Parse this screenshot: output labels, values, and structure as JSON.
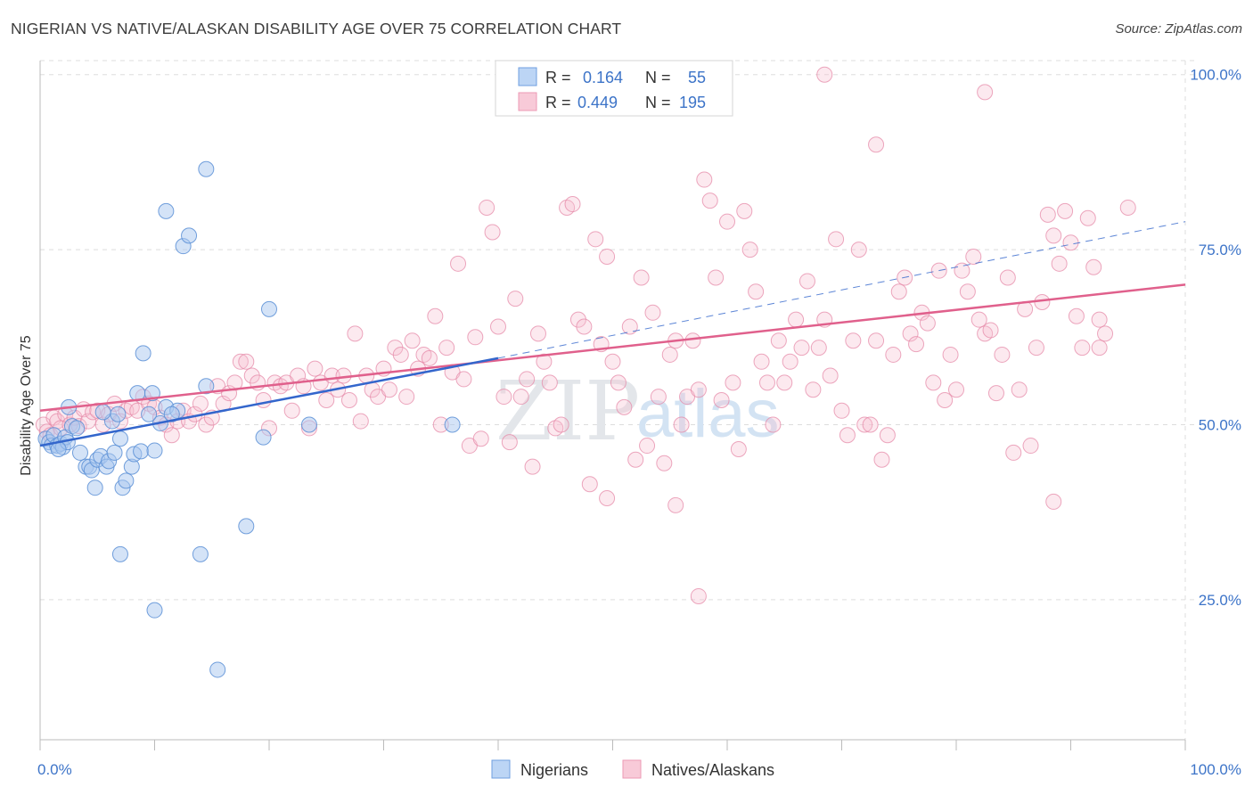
{
  "header": {
    "title": "NIGERIAN VS NATIVE/ALASKAN DISABILITY AGE OVER 75 CORRELATION CHART",
    "source": "Source: ZipAtlas.com"
  },
  "watermark": {
    "zip": "ZIP",
    "atlas": "atlas"
  },
  "colors": {
    "blue_fill": "#aac8f0",
    "blue_stroke": "#5b8fd6",
    "blue_line": "#3366cc",
    "pink_fill": "#f7c1d2",
    "pink_stroke": "#e68aa8",
    "pink_line": "#e0608c",
    "tick_text": "#3d74c8",
    "grid": "#dddddd"
  },
  "legend": {
    "rows": [
      {
        "r_label": "R =",
        "r_value": "0.164",
        "n_label": "N =",
        "n_value": "55"
      },
      {
        "r_label": "R =",
        "r_value": "0.449",
        "n_label": "N =",
        "n_value": "195"
      }
    ]
  },
  "bottom_legend": {
    "series1": "Nigerians",
    "series2": "Natives/Alaskans"
  },
  "chart_data": {
    "type": "scatter",
    "title": "NIGERIAN VS NATIVE/ALASKAN DISABILITY AGE OVER 75 CORRELATION CHART",
    "xlabel": "",
    "ylabel": "Disability Age Over 75",
    "xlim": [
      0,
      100
    ],
    "ylim": [
      5,
      102
    ],
    "x_tick_labels": [
      "0.0%",
      "100.0%"
    ],
    "y_ticks": [
      25,
      50,
      75,
      100
    ],
    "y_tick_labels": [
      "25.0%",
      "50.0%",
      "75.0%",
      "100.0%"
    ],
    "grid": true,
    "legend_position": "top-center",
    "series": [
      {
        "name": "Nigerians",
        "r": 0.164,
        "n": 55,
        "trend": {
          "x0": 0,
          "y0": 47.0,
          "x1": 40,
          "y1": 59.5,
          "dashed_to_x": 100,
          "dashed_to_y": 79.0
        },
        "points": [
          [
            0.5,
            48
          ],
          [
            0.8,
            47.5
          ],
          [
            1.0,
            47
          ],
          [
            1.2,
            48.5
          ],
          [
            1.5,
            47
          ],
          [
            1.8,
            47.3
          ],
          [
            2.0,
            46.8
          ],
          [
            2.2,
            48.2
          ],
          [
            2.4,
            47.5
          ],
          [
            1.6,
            46.5
          ],
          [
            2.8,
            49.8
          ],
          [
            2.5,
            52.5
          ],
          [
            3.2,
            49.5
          ],
          [
            3.5,
            46
          ],
          [
            4.0,
            44
          ],
          [
            4.3,
            44
          ],
          [
            4.5,
            43.5
          ],
          [
            4.8,
            41
          ],
          [
            5.0,
            45
          ],
          [
            5.3,
            45.5
          ],
          [
            5.8,
            44
          ],
          [
            6.0,
            44.8
          ],
          [
            6.3,
            50.5
          ],
          [
            6.5,
            46
          ],
          [
            7.0,
            48
          ],
          [
            7.2,
            41
          ],
          [
            7.5,
            42
          ],
          [
            8.0,
            44
          ],
          [
            8.2,
            45.8
          ],
          [
            8.5,
            54.5
          ],
          [
            8.8,
            46.2
          ],
          [
            6.8,
            51.5
          ],
          [
            5.5,
            51.8
          ],
          [
            10.5,
            50.2
          ],
          [
            11.0,
            52.5
          ],
          [
            9.5,
            51.5
          ],
          [
            9.0,
            60.2
          ],
          [
            10.0,
            46.3
          ],
          [
            12.0,
            52
          ],
          [
            11.5,
            51.5
          ],
          [
            12.5,
            75.5
          ],
          [
            13.0,
            77
          ],
          [
            14.5,
            55.5
          ],
          [
            11.0,
            80.5
          ],
          [
            19.5,
            48.2
          ],
          [
            20.0,
            66.5
          ],
          [
            23.5,
            50
          ],
          [
            18.0,
            35.5
          ],
          [
            14.0,
            31.5
          ],
          [
            7.0,
            31.5
          ],
          [
            10.0,
            23.5
          ],
          [
            15.5,
            15
          ],
          [
            36.0,
            50
          ],
          [
            14.5,
            86.5
          ],
          [
            9.8,
            54.5
          ]
        ]
      },
      {
        "name": "Natives/Alaskans",
        "r": 0.449,
        "n": 195,
        "trend": {
          "x0": 0,
          "y0": 52.0,
          "x1": 100,
          "y1": 70.0
        },
        "points": [
          [
            0.3,
            50
          ],
          [
            0.6,
            49
          ],
          [
            0.9,
            48.5
          ],
          [
            1.2,
            51
          ],
          [
            1.5,
            50.5
          ],
          [
            1.8,
            49.5
          ],
          [
            2.2,
            51.5
          ],
          [
            2.6,
            50
          ],
          [
            3.0,
            51
          ],
          [
            3.4,
            49.8
          ],
          [
            3.8,
            52.2
          ],
          [
            4.2,
            50.5
          ],
          [
            4.6,
            51.8
          ],
          [
            5.0,
            52
          ],
          [
            5.5,
            50
          ],
          [
            6.0,
            51.5
          ],
          [
            6.5,
            53
          ],
          [
            7.0,
            50.5
          ],
          [
            7.5,
            52
          ],
          [
            8.0,
            52.5
          ],
          [
            8.5,
            52
          ],
          [
            9.0,
            54
          ],
          [
            9.5,
            53
          ],
          [
            10.0,
            52.5
          ],
          [
            10.5,
            51
          ],
          [
            11.0,
            50
          ],
          [
            11.5,
            48.5
          ],
          [
            12.0,
            50.5
          ],
          [
            12.5,
            52
          ],
          [
            13.0,
            50.5
          ],
          [
            13.5,
            51.5
          ],
          [
            14.0,
            53
          ],
          [
            14.5,
            50
          ],
          [
            15.0,
            51
          ],
          [
            15.5,
            55.5
          ],
          [
            16.0,
            53
          ],
          [
            16.5,
            54.5
          ],
          [
            17.0,
            56
          ],
          [
            17.5,
            59
          ],
          [
            18.0,
            59
          ],
          [
            18.5,
            57
          ],
          [
            19.0,
            56
          ],
          [
            19.5,
            53.5
          ],
          [
            20.0,
            49.5
          ],
          [
            20.5,
            56
          ],
          [
            21.0,
            55.5
          ],
          [
            21.5,
            56
          ],
          [
            22.0,
            52
          ],
          [
            22.5,
            57
          ],
          [
            23.0,
            55.5
          ],
          [
            23.5,
            49.5
          ],
          [
            24.0,
            58
          ],
          [
            24.5,
            56
          ],
          [
            25.0,
            53.5
          ],
          [
            25.5,
            57
          ],
          [
            26.0,
            55
          ],
          [
            26.5,
            57
          ],
          [
            27.0,
            53.5
          ],
          [
            27.5,
            63
          ],
          [
            28.0,
            50.5
          ],
          [
            28.5,
            57
          ],
          [
            29.0,
            55
          ],
          [
            29.5,
            54
          ],
          [
            30.0,
            58
          ],
          [
            30.5,
            55
          ],
          [
            31.0,
            61
          ],
          [
            31.5,
            60
          ],
          [
            32.0,
            54
          ],
          [
            32.5,
            62
          ],
          [
            33.0,
            58
          ],
          [
            33.5,
            60
          ],
          [
            34.0,
            59.5
          ],
          [
            34.5,
            65.5
          ],
          [
            35.0,
            50
          ],
          [
            35.5,
            61
          ],
          [
            36.0,
            57.5
          ],
          [
            36.5,
            73
          ],
          [
            37.0,
            56.5
          ],
          [
            37.5,
            47
          ],
          [
            38.0,
            62.5
          ],
          [
            38.5,
            48
          ],
          [
            39.0,
            81
          ],
          [
            39.5,
            77.5
          ],
          [
            40.0,
            64
          ],
          [
            40.5,
            54
          ],
          [
            41.0,
            47.5
          ],
          [
            41.5,
            68
          ],
          [
            42.0,
            54
          ],
          [
            42.5,
            56.5
          ],
          [
            43.0,
            44
          ],
          [
            43.5,
            63
          ],
          [
            44.0,
            59
          ],
          [
            44.5,
            56
          ],
          [
            45.0,
            49.5
          ],
          [
            45.5,
            50
          ],
          [
            46.0,
            81
          ],
          [
            46.5,
            81.5
          ],
          [
            47.0,
            65
          ],
          [
            47.5,
            64
          ],
          [
            48.0,
            41.5
          ],
          [
            48.5,
            76.5
          ],
          [
            49.0,
            61.5
          ],
          [
            49.5,
            74
          ],
          [
            50.0,
            59
          ],
          [
            50.5,
            56
          ],
          [
            51.0,
            52.5
          ],
          [
            51.5,
            64
          ],
          [
            52.0,
            45
          ],
          [
            52.5,
            71
          ],
          [
            53.0,
            47
          ],
          [
            53.5,
            66
          ],
          [
            54.0,
            54
          ],
          [
            54.5,
            44.5
          ],
          [
            55.0,
            60
          ],
          [
            55.5,
            62
          ],
          [
            56.0,
            50
          ],
          [
            56.5,
            54
          ],
          [
            57.0,
            62
          ],
          [
            57.5,
            55
          ],
          [
            58.0,
            85
          ],
          [
            58.5,
            82
          ],
          [
            59.0,
            71
          ],
          [
            59.5,
            53.5
          ],
          [
            60.0,
            79
          ],
          [
            60.5,
            56
          ],
          [
            61.0,
            46.5
          ],
          [
            61.5,
            80.5
          ],
          [
            62.0,
            75
          ],
          [
            62.5,
            69
          ],
          [
            63.0,
            59
          ],
          [
            63.5,
            56
          ],
          [
            64.0,
            50
          ],
          [
            64.5,
            62
          ],
          [
            65.0,
            56
          ],
          [
            65.5,
            59
          ],
          [
            66.0,
            65
          ],
          [
            66.5,
            61
          ],
          [
            67.0,
            70.5
          ],
          [
            67.5,
            55
          ],
          [
            68.0,
            61
          ],
          [
            68.5,
            65
          ],
          [
            69.0,
            57
          ],
          [
            69.5,
            76.5
          ],
          [
            70.0,
            52
          ],
          [
            70.5,
            48.5
          ],
          [
            71.0,
            62
          ],
          [
            71.5,
            75
          ],
          [
            72.0,
            50
          ],
          [
            72.5,
            50
          ],
          [
            73.0,
            62
          ],
          [
            73.5,
            45
          ],
          [
            74.0,
            48.5
          ],
          [
            74.5,
            60
          ],
          [
            75.0,
            69
          ],
          [
            75.5,
            71
          ],
          [
            76.0,
            63
          ],
          [
            76.5,
            61.5
          ],
          [
            77.0,
            66
          ],
          [
            77.5,
            64.5
          ],
          [
            78.0,
            56
          ],
          [
            78.5,
            72
          ],
          [
            79.0,
            53.5
          ],
          [
            79.5,
            60
          ],
          [
            80.0,
            55
          ],
          [
            80.5,
            72
          ],
          [
            81.0,
            69
          ],
          [
            81.5,
            74
          ],
          [
            82.0,
            65
          ],
          [
            82.5,
            63
          ],
          [
            83.0,
            63.5
          ],
          [
            83.5,
            54.5
          ],
          [
            84.0,
            60
          ],
          [
            84.5,
            71
          ],
          [
            85.0,
            46
          ],
          [
            85.5,
            55
          ],
          [
            86.0,
            66.5
          ],
          [
            86.5,
            47
          ],
          [
            87.0,
            61
          ],
          [
            87.5,
            67.5
          ],
          [
            88.0,
            80
          ],
          [
            88.5,
            77
          ],
          [
            89.0,
            73
          ],
          [
            89.5,
            80.5
          ],
          [
            90.0,
            76
          ],
          [
            90.5,
            65.5
          ],
          [
            91.0,
            61
          ],
          [
            91.5,
            79.5
          ],
          [
            92.0,
            72.5
          ],
          [
            92.5,
            61
          ],
          [
            93.0,
            63
          ],
          [
            68.5,
            100
          ],
          [
            82.5,
            97.5
          ],
          [
            73.0,
            90
          ],
          [
            57.5,
            25.5
          ],
          [
            55.5,
            38.5
          ],
          [
            49.5,
            39.5
          ],
          [
            88.5,
            39
          ],
          [
            95.0,
            81
          ],
          [
            92.5,
            65
          ]
        ]
      }
    ]
  }
}
